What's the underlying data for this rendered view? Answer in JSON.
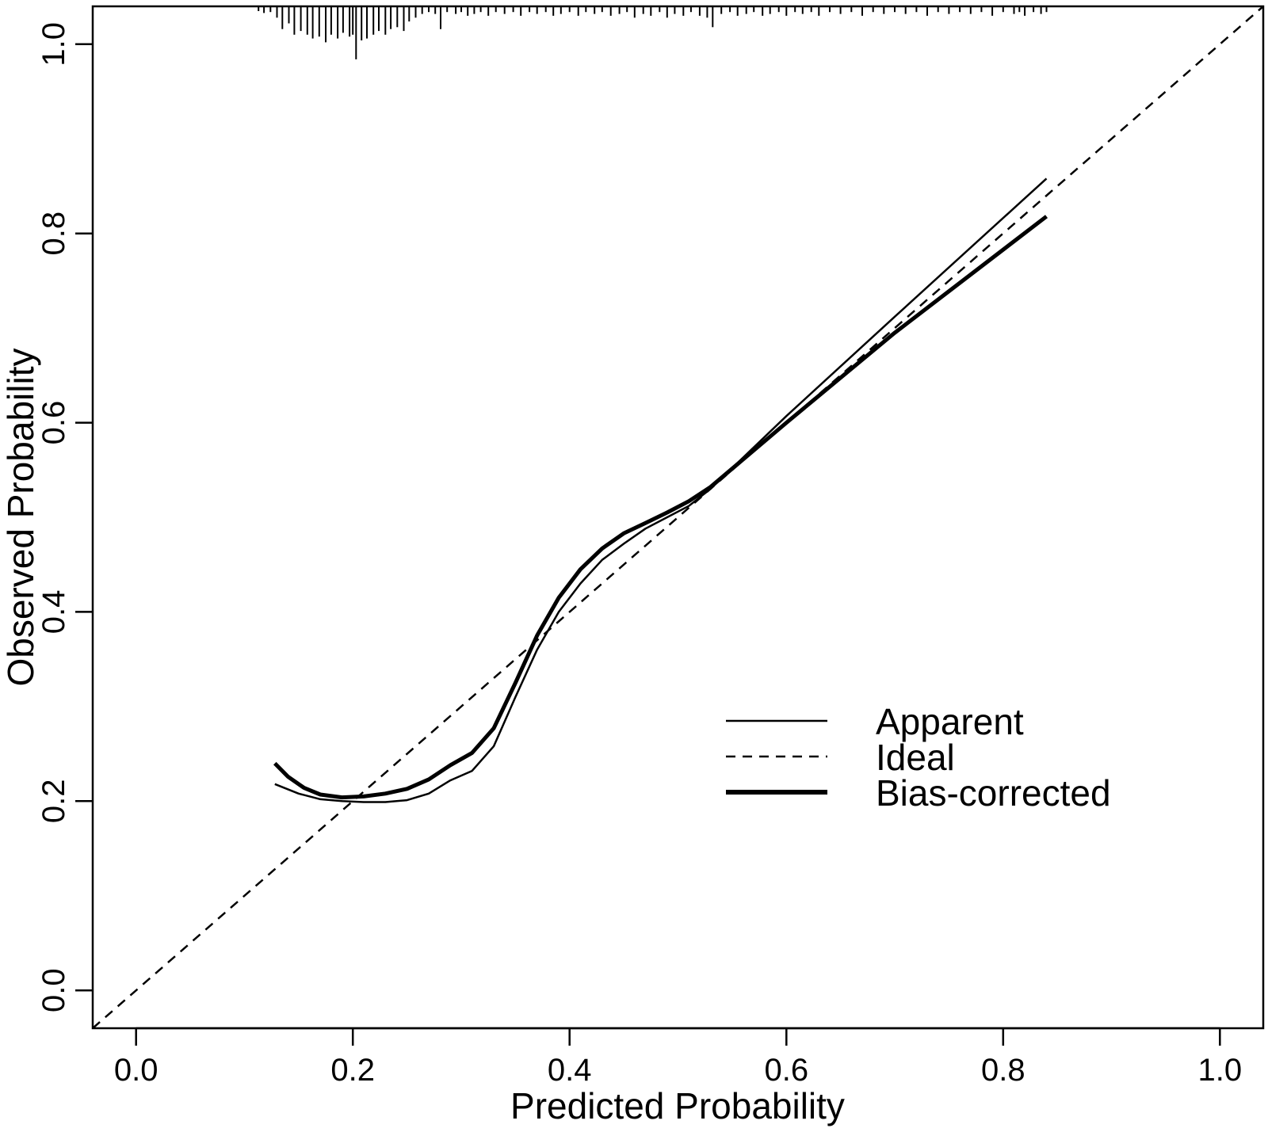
{
  "chart_data": {
    "type": "line",
    "title": "",
    "xlabel": "Predicted Probability",
    "ylabel": "Observed Probability",
    "xlim": [
      -0.04,
      1.04
    ],
    "ylim": [
      -0.04,
      1.04
    ],
    "x_ticks": [
      0.0,
      0.2,
      0.4,
      0.6,
      0.8,
      1.0
    ],
    "x_tick_labels": [
      "0.0",
      "0.2",
      "0.4",
      "0.6",
      "0.8",
      "1.0"
    ],
    "y_ticks": [
      0.0,
      0.2,
      0.4,
      0.6,
      0.8,
      1.0
    ],
    "y_tick_labels": [
      "0.0",
      "0.2",
      "0.4",
      "0.6",
      "0.8",
      "1.0"
    ],
    "grid": false,
    "legend_position": "lower-right",
    "series": [
      {
        "name": "Apparent",
        "style": "thin-solid",
        "points": [
          [
            0.128,
            0.218
          ],
          [
            0.15,
            0.208
          ],
          [
            0.17,
            0.202
          ],
          [
            0.19,
            0.2
          ],
          [
            0.21,
            0.199
          ],
          [
            0.23,
            0.199
          ],
          [
            0.25,
            0.201
          ],
          [
            0.27,
            0.208
          ],
          [
            0.29,
            0.222
          ],
          [
            0.31,
            0.232
          ],
          [
            0.33,
            0.258
          ],
          [
            0.35,
            0.31
          ],
          [
            0.37,
            0.36
          ],
          [
            0.39,
            0.4
          ],
          [
            0.41,
            0.43
          ],
          [
            0.43,
            0.455
          ],
          [
            0.45,
            0.472
          ],
          [
            0.47,
            0.488
          ],
          [
            0.49,
            0.5
          ],
          [
            0.51,
            0.512
          ],
          [
            0.53,
            0.53
          ],
          [
            0.6,
            0.607
          ],
          [
            0.7,
            0.712
          ],
          [
            0.84,
            0.858
          ]
        ]
      },
      {
        "name": "Ideal",
        "style": "dashed",
        "points": [
          [
            -0.04,
            -0.04
          ],
          [
            1.04,
            1.04
          ]
        ]
      },
      {
        "name": "Bias-corrected",
        "style": "thick-solid",
        "points": [
          [
            0.128,
            0.24
          ],
          [
            0.14,
            0.226
          ],
          [
            0.155,
            0.214
          ],
          [
            0.17,
            0.207
          ],
          [
            0.19,
            0.204
          ],
          [
            0.21,
            0.205
          ],
          [
            0.23,
            0.208
          ],
          [
            0.25,
            0.213
          ],
          [
            0.27,
            0.223
          ],
          [
            0.29,
            0.238
          ],
          [
            0.31,
            0.251
          ],
          [
            0.33,
            0.277
          ],
          [
            0.35,
            0.325
          ],
          [
            0.37,
            0.375
          ],
          [
            0.39,
            0.415
          ],
          [
            0.41,
            0.445
          ],
          [
            0.43,
            0.467
          ],
          [
            0.45,
            0.483
          ],
          [
            0.47,
            0.494
          ],
          [
            0.49,
            0.505
          ],
          [
            0.51,
            0.517
          ],
          [
            0.53,
            0.532
          ],
          [
            0.6,
            0.6
          ],
          [
            0.7,
            0.695
          ],
          [
            0.84,
            0.818
          ]
        ]
      }
    ],
    "rug": [
      [
        0.113,
        0.005
      ],
      [
        0.118,
        0.007
      ],
      [
        0.124,
        0.006
      ],
      [
        0.13,
        0.012
      ],
      [
        0.135,
        0.024
      ],
      [
        0.141,
        0.018
      ],
      [
        0.146,
        0.03
      ],
      [
        0.152,
        0.026
      ],
      [
        0.158,
        0.03
      ],
      [
        0.163,
        0.034
      ],
      [
        0.169,
        0.032
      ],
      [
        0.175,
        0.038
      ],
      [
        0.18,
        0.03
      ],
      [
        0.186,
        0.034
      ],
      [
        0.191,
        0.028
      ],
      [
        0.197,
        0.032
      ],
      [
        0.2,
        0.03
      ],
      [
        0.203,
        0.056
      ],
      [
        0.208,
        0.036
      ],
      [
        0.213,
        0.034
      ],
      [
        0.219,
        0.03
      ],
      [
        0.224,
        0.026
      ],
      [
        0.23,
        0.03
      ],
      [
        0.235,
        0.024
      ],
      [
        0.241,
        0.022
      ],
      [
        0.247,
        0.026
      ],
      [
        0.252,
        0.016
      ],
      [
        0.258,
        0.012
      ],
      [
        0.264,
        0.008
      ],
      [
        0.27,
        0.006
      ],
      [
        0.276,
        0.008
      ],
      [
        0.281,
        0.024
      ],
      [
        0.287,
        0.006
      ],
      [
        0.295,
        0.008
      ],
      [
        0.3,
        0.006
      ],
      [
        0.306,
        0.01
      ],
      [
        0.312,
        0.008
      ],
      [
        0.318,
        0.006
      ],
      [
        0.325,
        0.01
      ],
      [
        0.332,
        0.006
      ],
      [
        0.34,
        0.008
      ],
      [
        0.348,
        0.006
      ],
      [
        0.355,
        0.01
      ],
      [
        0.363,
        0.006
      ],
      [
        0.37,
        0.008
      ],
      [
        0.378,
        0.006
      ],
      [
        0.385,
        0.01
      ],
      [
        0.392,
        0.008
      ],
      [
        0.4,
        0.006
      ],
      [
        0.408,
        0.01
      ],
      [
        0.415,
        0.006
      ],
      [
        0.423,
        0.008
      ],
      [
        0.43,
        0.006
      ],
      [
        0.438,
        0.01
      ],
      [
        0.446,
        0.008
      ],
      [
        0.453,
        0.006
      ],
      [
        0.46,
        0.012
      ],
      [
        0.468,
        0.008
      ],
      [
        0.475,
        0.01
      ],
      [
        0.483,
        0.006
      ],
      [
        0.49,
        0.012
      ],
      [
        0.497,
        0.008
      ],
      [
        0.505,
        0.01
      ],
      [
        0.512,
        0.006
      ],
      [
        0.52,
        0.01
      ],
      [
        0.527,
        0.012
      ],
      [
        0.532,
        0.022
      ],
      [
        0.54,
        0.008
      ],
      [
        0.548,
        0.006
      ],
      [
        0.555,
        0.01
      ],
      [
        0.563,
        0.008
      ],
      [
        0.57,
        0.006
      ],
      [
        0.578,
        0.01
      ],
      [
        0.585,
        0.008
      ],
      [
        0.593,
        0.006
      ],
      [
        0.6,
        0.01
      ],
      [
        0.608,
        0.006
      ],
      [
        0.615,
        0.008
      ],
      [
        0.623,
        0.006
      ],
      [
        0.63,
        0.01
      ],
      [
        0.64,
        0.006
      ],
      [
        0.65,
        0.008
      ],
      [
        0.66,
        0.006
      ],
      [
        0.67,
        0.01
      ],
      [
        0.68,
        0.006
      ],
      [
        0.69,
        0.008
      ],
      [
        0.7,
        0.006
      ],
      [
        0.71,
        0.008
      ],
      [
        0.72,
        0.006
      ],
      [
        0.73,
        0.01
      ],
      [
        0.74,
        0.006
      ],
      [
        0.75,
        0.008
      ],
      [
        0.76,
        0.006
      ],
      [
        0.77,
        0.008
      ],
      [
        0.78,
        0.006
      ],
      [
        0.79,
        0.01
      ],
      [
        0.8,
        0.006
      ],
      [
        0.81,
        0.008
      ],
      [
        0.815,
        0.006
      ],
      [
        0.82,
        0.01
      ],
      [
        0.828,
        0.006
      ],
      [
        0.835,
        0.008
      ],
      [
        0.84,
        0.006
      ]
    ]
  }
}
